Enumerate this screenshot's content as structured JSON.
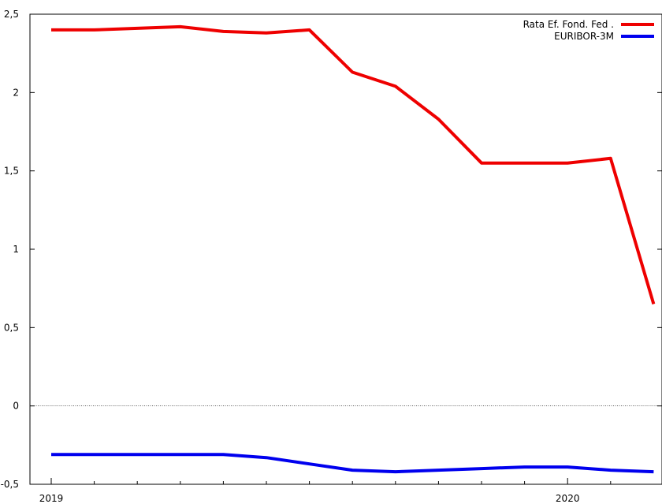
{
  "chart_data": {
    "type": "line",
    "title": "",
    "xlabel": "",
    "ylabel": "",
    "x_tick_labels": [
      {
        "label": "2019",
        "x": 0
      },
      {
        "label": "2020",
        "x": 12
      }
    ],
    "x_minor_ticks": [
      1,
      2,
      3,
      4,
      5,
      6,
      7,
      8,
      9,
      10,
      11,
      13
    ],
    "y_ticks": [
      -0.5,
      0,
      0.5,
      1,
      1.5,
      2,
      2.5
    ],
    "y_tick_labels": [
      "-0,5",
      "0",
      "0,5",
      "1",
      "1,5",
      "2",
      "2,5"
    ],
    "ylim": [
      -0.5,
      2.5
    ],
    "xlim": [
      0,
      13.4
    ],
    "grid": false,
    "zero_line": true,
    "legend_position": "top-right",
    "x": [
      0,
      1,
      2,
      3,
      4,
      5,
      6,
      7,
      8,
      9,
      10,
      11,
      12,
      13,
      14
    ],
    "series": [
      {
        "name": "Rata Ef. Fond. Fed .",
        "color": "#ee0000",
        "values": [
          2.4,
          2.4,
          2.41,
          2.42,
          2.39,
          2.38,
          2.4,
          2.13,
          2.04,
          1.83,
          1.55,
          1.55,
          1.55,
          1.58,
          0.65
        ],
        "x": [
          0,
          1,
          2,
          3,
          4,
          5,
          6,
          7,
          8,
          9,
          10,
          11,
          12,
          13,
          14
        ]
      },
      {
        "name": "EURIBOR-3M",
        "color": "#0000ee",
        "values": [
          -0.31,
          -0.31,
          -0.31,
          -0.31,
          -0.31,
          -0.33,
          -0.37,
          -0.41,
          -0.42,
          -0.41,
          -0.4,
          -0.39,
          -0.39,
          -0.41,
          -0.42
        ],
        "x": [
          0,
          1,
          2,
          3,
          4,
          5,
          6,
          7,
          8,
          9,
          10,
          11,
          12,
          13,
          14
        ]
      }
    ]
  }
}
